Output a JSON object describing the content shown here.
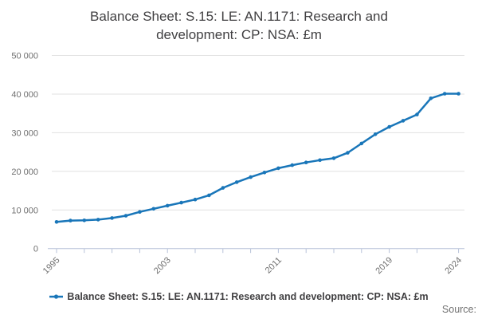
{
  "title": "Balance Sheet: S.15: LE: AN.1171: Research and development: CP: NSA: £m",
  "legend": {
    "label": "Balance Sheet: S.15: LE: AN.1171: Research and development: CP: NSA: £m"
  },
  "footer": {
    "source_label": "Source:"
  },
  "colors": {
    "line": "#1976b9",
    "grid": "#e1e1e1",
    "axis": "#b7c2d8",
    "tick_label": "#6f6f6f",
    "title": "#414042",
    "source": "#707070"
  },
  "chart_data": {
    "type": "line",
    "title": "Balance Sheet: S.15: LE: AN.1171: Research and development: CP: NSA: £m",
    "xlabel": "",
    "ylabel": "",
    "ylim": [
      0,
      50000
    ],
    "grid": "horizontal-only",
    "legend_position": "bottom-center",
    "x": [
      1995,
      1996,
      1997,
      1998,
      1999,
      2000,
      2001,
      2002,
      2003,
      2004,
      2005,
      2006,
      2007,
      2008,
      2009,
      2010,
      2011,
      2012,
      2013,
      2014,
      2015,
      2016,
      2017,
      2018,
      2019,
      2020,
      2021,
      2022,
      2023,
      2024
    ],
    "series": [
      {
        "name": "Balance Sheet: S.15: LE: AN.1171: Research and development: CP: NSA: £m",
        "values": [
          6900,
          7250,
          7300,
          7500,
          7900,
          8500,
          9500,
          10300,
          11100,
          11900,
          12700,
          13800,
          15700,
          17200,
          18500,
          19700,
          20800,
          21600,
          22300,
          22900,
          23400,
          24800,
          27200,
          29600,
          31500,
          33100,
          34700,
          38900,
          40100,
          40100
        ]
      }
    ],
    "yticks": [
      0,
      10000,
      20000,
      30000,
      40000,
      50000
    ],
    "ytick_labels": [
      "0",
      "10 000",
      "20 000",
      "30 000",
      "40 000",
      "50 000"
    ],
    "xticks": [
      1995,
      1997,
      1999,
      2001,
      2003,
      2005,
      2007,
      2009,
      2011,
      2013,
      2015,
      2017,
      2019,
      2021,
      2024
    ],
    "xtick_labels": [
      {
        "year": 1995,
        "label": "1995"
      },
      {
        "year": 2003,
        "label": "2003"
      },
      {
        "year": 2011,
        "label": "2011"
      },
      {
        "year": 2019,
        "label": "2019"
      },
      {
        "year": 2024,
        "label": "2024"
      }
    ]
  }
}
